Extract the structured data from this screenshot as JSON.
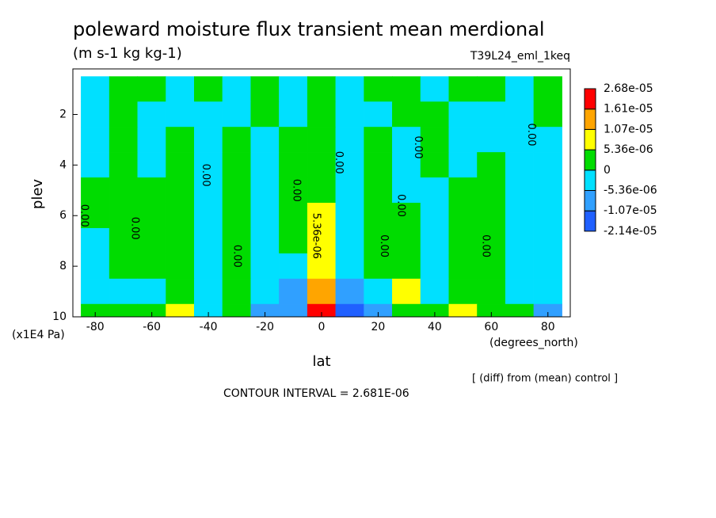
{
  "chart_data": {
    "type": "contour",
    "title": "poleward moisture flux transient mean merdional",
    "subtitle": "(m s-1 kg kg-1)",
    "dataset": "T39L24_eml_1keq",
    "x_label": "lat",
    "x_units": "(degrees_north)",
    "y_label": "plev",
    "y_units": "(x1E4 Pa)",
    "note": "[ (diff) from (mean) control ]",
    "contour_interval": "CONTOUR INTERVAL = 2.681E-06",
    "xlim": [
      -87.9,
      87.9
    ],
    "xticks": [
      -80,
      -60,
      -40,
      -20,
      0,
      20,
      40,
      60,
      80
    ],
    "ylim": [
      10,
      0.2
    ],
    "yticks": [
      2,
      4,
      6,
      8,
      10
    ],
    "levels": [
      {
        "value": -2.14e-05,
        "label": "-2.14e-05"
      },
      {
        "value": -1.07e-05,
        "label": "-1.07e-05"
      },
      {
        "value": -5.36e-06,
        "label": "-5.36e-06"
      },
      0,
      {
        "value": 5.36e-06,
        "label": "5.36e-06"
      },
      {
        "value": 1.07e-05,
        "label": "1.07e-05"
      },
      {
        "value": 1.61e-05,
        "label": "1.61e-05"
      },
      {
        "value": 2.68e-05,
        "label": "2.68e-05"
      }
    ],
    "colors": [
      "#2060ff",
      "#30a0ff",
      "#00e0ff",
      "#00dc00",
      "#ffff00",
      "#ffa500",
      "#ff0000"
    ],
    "x": [
      -80,
      -70,
      -60,
      -50,
      -40,
      -30,
      -20,
      -10,
      0,
      10,
      20,
      30,
      40,
      50,
      60,
      70,
      80
    ],
    "y": [
      1,
      2,
      3,
      4,
      5,
      6,
      7,
      8,
      9,
      10
    ],
    "z": [
      [
        -2.5e-06,
        2.5e-06,
        2.5e-06,
        -2.5e-06,
        2.5e-06,
        -2.5e-06,
        2.5e-06,
        -2.5e-06,
        2.5e-06,
        -2.5e-06,
        2.5e-06,
        2.5e-06,
        -2.5e-06,
        2.5e-06,
        2.5e-06,
        -2.5e-06,
        2.5e-06
      ],
      [
        -2.5e-06,
        2.5e-06,
        -2.5e-06,
        -2.5e-06,
        -2.5e-06,
        -2.5e-06,
        2.5e-06,
        -2.5e-06,
        2.5e-06,
        -2.5e-06,
        -2.5e-06,
        2.5e-06,
        2.5e-06,
        -2.5e-06,
        -2.5e-06,
        -2.5e-06,
        2.5e-06
      ],
      [
        -2.5e-06,
        2.5e-06,
        -2.5e-06,
        2.5e-06,
        -2.5e-06,
        2.5e-06,
        -2.5e-06,
        2.5e-06,
        2.5e-06,
        -2.5e-06,
        2.5e-06,
        -2.5e-06,
        2.5e-06,
        -2.5e-06,
        -2.5e-06,
        -2.5e-06,
        -2.5e-06
      ],
      [
        -2.5e-06,
        2.5e-06,
        -2.5e-06,
        2.5e-06,
        -2.5e-06,
        2.5e-06,
        -2.5e-06,
        2.5e-06,
        2.5e-06,
        -2.5e-06,
        2.5e-06,
        -2.5e-06,
        2.5e-06,
        -2.5e-06,
        2.5e-06,
        -2.5e-06,
        -2.5e-06
      ],
      [
        2.5e-06,
        2.5e-06,
        2.5e-06,
        2.5e-06,
        -2.5e-06,
        2.5e-06,
        -2.5e-06,
        2.5e-06,
        2.5e-06,
        -2.5e-06,
        2.5e-06,
        -2.5e-06,
        -2.5e-06,
        2.5e-06,
        2.5e-06,
        -2.5e-06,
        -2.5e-06
      ],
      [
        2.5e-06,
        2.5e-06,
        2.5e-06,
        2.5e-06,
        -2.5e-06,
        2.5e-06,
        -2.5e-06,
        2.5e-06,
        7e-06,
        -2.5e-06,
        2.5e-06,
        2.5e-06,
        -2.5e-06,
        2.5e-06,
        2.5e-06,
        -2.5e-06,
        -2.5e-06
      ],
      [
        -2.5e-06,
        2.5e-06,
        2.5e-06,
        2.5e-06,
        -2.5e-06,
        2.5e-06,
        -2.5e-06,
        2.5e-06,
        7e-06,
        -2.5e-06,
        2.5e-06,
        2.5e-06,
        -2.5e-06,
        2.5e-06,
        2.5e-06,
        -2.5e-06,
        -2.5e-06
      ],
      [
        -2.5e-06,
        2.5e-06,
        2.5e-06,
        2.5e-06,
        -2.5e-06,
        2.5e-06,
        -2.5e-06,
        -2.5e-06,
        7e-06,
        -2.5e-06,
        2.5e-06,
        2.5e-06,
        -2.5e-06,
        2.5e-06,
        2.5e-06,
        -2.5e-06,
        -2.5e-06
      ],
      [
        -2.5e-06,
        -2.5e-06,
        -2.5e-06,
        2.5e-06,
        -2.5e-06,
        2.5e-06,
        -2.5e-06,
        -8e-06,
        1.3e-05,
        -8e-06,
        -2.5e-06,
        7e-06,
        -2.5e-06,
        2.5e-06,
        2.5e-06,
        -2.5e-06,
        -2.5e-06
      ],
      [
        2.5e-06,
        2.5e-06,
        2.5e-06,
        7e-06,
        -2.5e-06,
        2.5e-06,
        -8e-06,
        -8e-06,
        2e-05,
        -1.5e-05,
        -8e-06,
        2.5e-06,
        2.5e-06,
        7e-06,
        2.5e-06,
        2.5e-06,
        -8e-06
      ]
    ],
    "contour_labels": [
      {
        "text": "0.00",
        "lat": -84,
        "plev": 6.0
      },
      {
        "text": "0.00",
        "lat": -66,
        "plev": 6.5
      },
      {
        "text": "0.00",
        "lat": -41,
        "plev": 4.4
      },
      {
        "text": "0.00",
        "lat": -30,
        "plev": 7.6
      },
      {
        "text": "0.00",
        "lat": -9,
        "plev": 5.0
      },
      {
        "text": "5.36e-06",
        "lat": -2,
        "plev": 6.8
      },
      {
        "text": "0.00",
        "lat": 6,
        "plev": 3.9
      },
      {
        "text": "0.00",
        "lat": 22,
        "plev": 7.2
      },
      {
        "text": "0.00",
        "lat": 28,
        "plev": 5.6
      },
      {
        "text": "0.00",
        "lat": 34,
        "plev": 3.3
      },
      {
        "text": "0.00",
        "lat": 58,
        "plev": 7.2
      },
      {
        "text": "0.00",
        "lat": 74,
        "plev": 2.8
      }
    ]
  }
}
